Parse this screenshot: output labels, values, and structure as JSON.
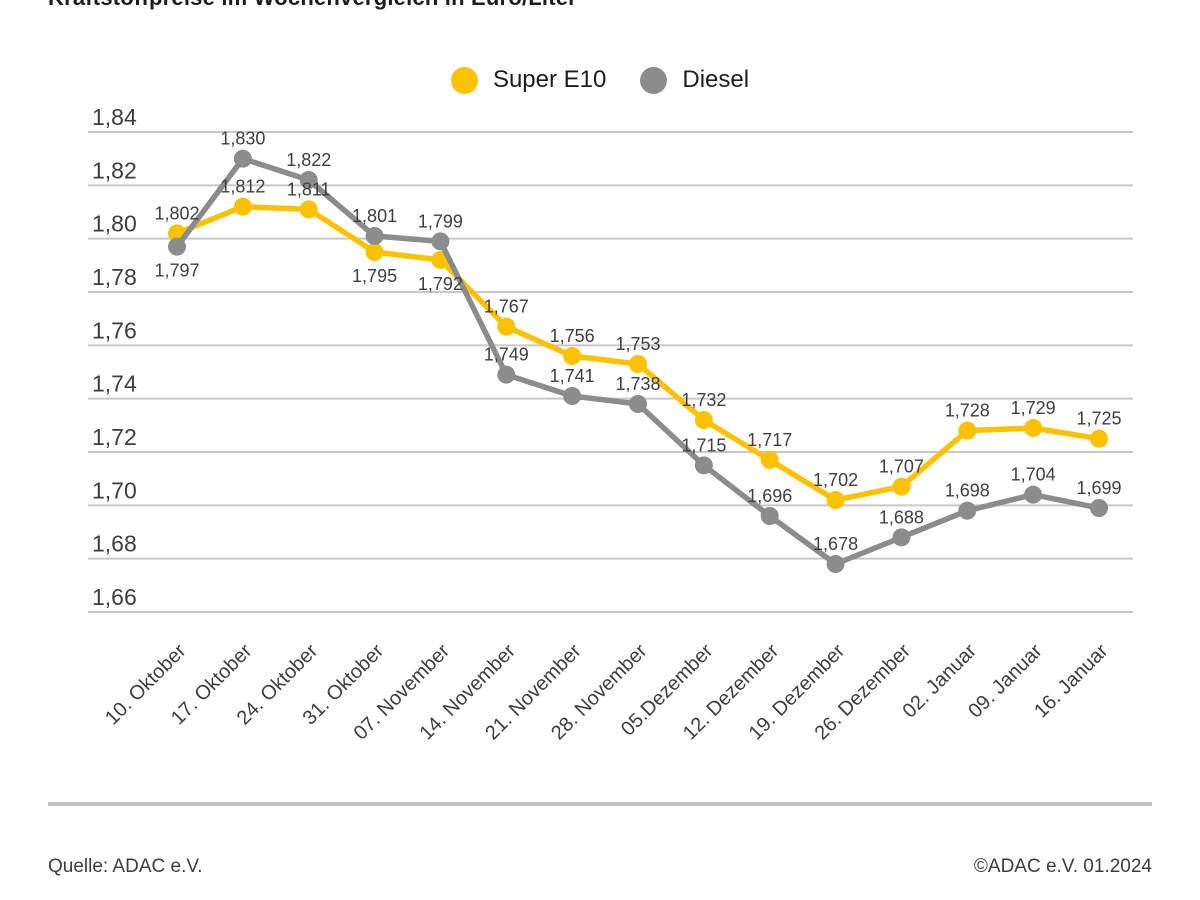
{
  "title": "Kraftstoffpreise im Wochenvergleich in Euro/Liter",
  "chart_data": {
    "type": "line",
    "title": "Kraftstoffpreise im Wochenvergleich in Euro/Liter",
    "categories": [
      "10. Oktober",
      "17. Oktober",
      "24. Oktober",
      "31. Oktober",
      "07. November",
      "14. November",
      "21. November",
      "28. November",
      "05.Dezember",
      "12. Dezember",
      "19. Dezember",
      "26. Dezember",
      "02. Januar",
      "09. Januar",
      "16. Januar"
    ],
    "series": [
      {
        "name": "Super E10",
        "color": "#FCC200",
        "values": [
          1.802,
          1.812,
          1.811,
          1.795,
          1.792,
          1.767,
          1.756,
          1.753,
          1.732,
          1.717,
          1.702,
          1.707,
          1.728,
          1.729,
          1.725
        ],
        "labels": [
          "1,802",
          "1,812",
          "1,811",
          "1,795",
          "1,792",
          "1,767",
          "1,756",
          "1,753",
          "1,732",
          "1,717",
          "1,702",
          "1,707",
          "1,728",
          "1,729",
          "1,725"
        ],
        "label_positions": [
          "above",
          "above",
          "above",
          "below",
          "below",
          "above",
          "above",
          "above",
          "above",
          "above",
          "above",
          "above",
          "above",
          "above",
          "above"
        ]
      },
      {
        "name": "Diesel",
        "color": "#8C8C8C",
        "values": [
          1.797,
          1.83,
          1.822,
          1.801,
          1.799,
          1.749,
          1.741,
          1.738,
          1.715,
          1.696,
          1.678,
          1.688,
          1.698,
          1.704,
          1.699
        ],
        "labels": [
          "1,797",
          "1,830",
          "1,822",
          "1,801",
          "1,799",
          "1,749",
          "1,741",
          "1,738",
          "1,715",
          "1,696",
          "1,678",
          "1,688",
          "1,698",
          "1,704",
          "1,699"
        ],
        "label_positions": [
          "below",
          "above",
          "above",
          "above",
          "above",
          "above",
          "above",
          "above",
          "above",
          "above",
          "above",
          "above",
          "above",
          "above",
          "above"
        ]
      }
    ],
    "xlabel": "",
    "ylabel": "",
    "ylim": [
      1.66,
      1.84
    ],
    "ytick_step": 0.02,
    "ytick_labels": [
      "1,84",
      "1,82",
      "1,80",
      "1,78",
      "1,76",
      "1,74",
      "1,72",
      "1,70",
      "1,68",
      "1,66"
    ],
    "grid": true,
    "legend_position": "top",
    "decimal_separator": ","
  },
  "footer": {
    "source": "Quelle: ADAC e.V.",
    "copyright": "©ADAC e.V. 01.2024"
  },
  "colors": {
    "super_e10": "#FCC200",
    "diesel": "#8C8C8C",
    "gridline": "#C8C8C8",
    "data_label": "#3F3F3F",
    "tick_label": "#3D3D3D",
    "title_text": "#1D1D1B",
    "divider": "#C1C1C1",
    "footer_text": "#3D3D3D",
    "background": "#FFFFFF"
  }
}
